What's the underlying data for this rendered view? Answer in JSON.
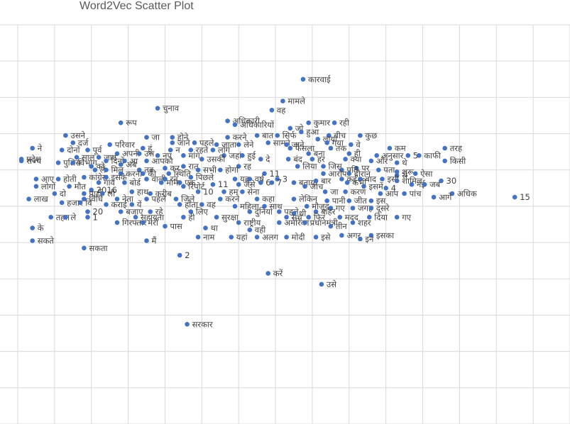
{
  "chart_data": {
    "type": "scatter",
    "title": "Word2Vec Scatter Plot",
    "xlabel": "",
    "ylabel": "",
    "grid": true,
    "xlim": [
      -7,
      8
    ],
    "ylim": [
      -7,
      4
    ],
    "points": [
      {
        "x": 0.75,
        "y": 2.5,
        "label": "कारवाई"
      },
      {
        "x": 0.2,
        "y": 1.9,
        "label": "मामले"
      },
      {
        "x": -0.1,
        "y": 1.65,
        "label": "वह"
      },
      {
        "x": -3.2,
        "y": 1.7,
        "label": "चुनाव"
      },
      {
        "x": -1.3,
        "y": 1.35,
        "label": "अधिकारी"
      },
      {
        "x": -1.1,
        "y": 1.25,
        "label": "अधिकारियों"
      },
      {
        "x": -4.2,
        "y": 1.3,
        "label": "रूप"
      },
      {
        "x": 0.9,
        "y": 1.3,
        "label": "कुमार"
      },
      {
        "x": 1.6,
        "y": 1.3,
        "label": "रही"
      },
      {
        "x": 0.4,
        "y": 1.15,
        "label": "जो"
      },
      {
        "x": 0.7,
        "y": 1.05,
        "label": "हुआ"
      },
      {
        "x": 2.3,
        "y": 0.95,
        "label": "कुछ"
      },
      {
        "x": 1.45,
        "y": 0.95,
        "label": "बीच"
      },
      {
        "x": -5.7,
        "y": 0.95,
        "label": "उसने"
      },
      {
        "x": -3.5,
        "y": 0.9,
        "label": "जा"
      },
      {
        "x": -2.8,
        "y": 0.9,
        "label": "होने"
      },
      {
        "x": -1.3,
        "y": 0.9,
        "label": "करने"
      },
      {
        "x": -0.5,
        "y": 0.95,
        "label": "बात"
      },
      {
        "x": 0.05,
        "y": 0.95,
        "label": "सिर्फ"
      },
      {
        "x": 1.15,
        "y": 0.85,
        "label": "लाया"
      },
      {
        "x": -5.5,
        "y": 0.75,
        "label": "दर्ज"
      },
      {
        "x": -4.5,
        "y": 0.7,
        "label": "परिवार"
      },
      {
        "x": -2.8,
        "y": 0.75,
        "label": "जाने"
      },
      {
        "x": -2.2,
        "y": 0.75,
        "label": "पहले"
      },
      {
        "x": -1.6,
        "y": 0.7,
        "label": "जाता"
      },
      {
        "x": -1.0,
        "y": 0.7,
        "label": "लेने"
      },
      {
        "x": -0.2,
        "y": 0.75,
        "label": "सामने"
      },
      {
        "x": 0.3,
        "y": 0.7,
        "label": "जाने"
      },
      {
        "x": 1.4,
        "y": 0.75,
        "label": "गया"
      },
      {
        "x": 2.05,
        "y": 0.7,
        "label": "वे"
      },
      {
        "x": -6.6,
        "y": 0.6,
        "label": "ने"
      },
      {
        "x": -5.8,
        "y": 0.55,
        "label": "दोनों"
      },
      {
        "x": -5.1,
        "y": 0.55,
        "label": "पूर्व"
      },
      {
        "x": -3.6,
        "y": 0.6,
        "label": "हूं"
      },
      {
        "x": -2.85,
        "y": 0.55,
        "label": "न"
      },
      {
        "x": -2.3,
        "y": 0.55,
        "label": "रहते"
      },
      {
        "x": -1.7,
        "y": 0.55,
        "label": "लोग"
      },
      {
        "x": 0.4,
        "y": 0.6,
        "label": "फैसला"
      },
      {
        "x": 1.5,
        "y": 0.6,
        "label": "तक"
      },
      {
        "x": 3.1,
        "y": 0.6,
        "label": "कम"
      },
      {
        "x": 4.6,
        "y": 0.6,
        "label": "तरह"
      },
      {
        "x": -4.3,
        "y": 0.45,
        "label": "अपनी"
      },
      {
        "x": -3.7,
        "y": 0.45,
        "label": "उस"
      },
      {
        "x": -3.2,
        "y": 0.4,
        "label": "नए"
      },
      {
        "x": -2.5,
        "y": 0.4,
        "label": "मांग"
      },
      {
        "x": -1.4,
        "y": 0.4,
        "label": "जहां"
      },
      {
        "x": -0.9,
        "y": 0.4,
        "label": "हुई"
      },
      {
        "x": 0.9,
        "y": 0.45,
        "label": "बना"
      },
      {
        "x": 2.0,
        "y": 0.45,
        "label": "ही"
      },
      {
        "x": 2.75,
        "y": 0.4,
        "label": "अनुसार"
      },
      {
        "x": 3.6,
        "y": 0.4,
        "label": "5"
      },
      {
        "x": 3.9,
        "y": 0.4,
        "label": "काफी"
      },
      {
        "x": -5.4,
        "y": 0.35,
        "label": "साल"
      },
      {
        "x": -4.8,
        "y": 0.35,
        "label": "जाए"
      },
      {
        "x": -6.9,
        "y": 0.3,
        "label": "प्रदेश"
      },
      {
        "x": -2.0,
        "y": 0.3,
        "label": "उसकी"
      },
      {
        "x": -0.4,
        "y": 0.3,
        "label": "दे"
      },
      {
        "x": 0.35,
        "y": 0.3,
        "label": "बंद"
      },
      {
        "x": 1.0,
        "y": 0.3,
        "label": "हर"
      },
      {
        "x": 1.9,
        "y": 0.3,
        "label": "क्या"
      },
      {
        "x": 2.6,
        "y": 0.25,
        "label": "और"
      },
      {
        "x": 3.3,
        "y": 0.2,
        "label": "थे"
      },
      {
        "x": 4.6,
        "y": 0.25,
        "label": "किसी"
      },
      {
        "x": -6.9,
        "y": 0.25,
        "label": "राज्य"
      },
      {
        "x": -5.9,
        "y": 0.2,
        "label": "पुलिस"
      },
      {
        "x": -5.5,
        "y": 0.2,
        "label": "विभाग"
      },
      {
        "x": -4.6,
        "y": 0.25,
        "label": "दिनों"
      },
      {
        "x": -4.1,
        "y": 0.25,
        "label": "आ"
      },
      {
        "x": -3.5,
        "y": 0.25,
        "label": "आपको"
      },
      {
        "x": -5.0,
        "y": 0.1,
        "label": "को"
      },
      {
        "x": -4.2,
        "y": 0.15,
        "label": "अब"
      },
      {
        "x": -2.5,
        "y": 0.1,
        "label": "रात"
      },
      {
        "x": -1.0,
        "y": 0.1,
        "label": "रह"
      },
      {
        "x": 0.6,
        "y": 0.1,
        "label": "लिया"
      },
      {
        "x": 1.3,
        "y": 0.1,
        "label": "जिस"
      },
      {
        "x": 2.2,
        "y": 0.05,
        "label": "पर"
      },
      {
        "x": -4.9,
        "y": 0.0,
        "label": "लें"
      },
      {
        "x": -4.6,
        "y": 0.0,
        "label": "मिल"
      },
      {
        "x": -3.7,
        "y": 0.0,
        "label": "तब"
      },
      {
        "x": -3.0,
        "y": 0.05,
        "label": "कर"
      },
      {
        "x": -2.1,
        "y": 0.0,
        "label": "सभी"
      },
      {
        "x": -1.5,
        "y": 0.0,
        "label": "होगा"
      },
      {
        "x": 1.8,
        "y": 0.0,
        "label": "प्रति"
      },
      {
        "x": 2.8,
        "y": 0.0,
        "label": "पता"
      },
      {
        "x": 3.3,
        "y": -0.05,
        "label": "शुरू"
      },
      {
        "x": 3.8,
        "y": -0.1,
        "label": "ऐसा"
      },
      {
        "x": -4.2,
        "y": -0.1,
        "label": "करना"
      },
      {
        "x": -3.6,
        "y": -0.1,
        "label": "की"
      },
      {
        "x": -2.9,
        "y": -0.1,
        "label": "स्थिति"
      },
      {
        "x": -0.3,
        "y": -0.1,
        "label": "11"
      },
      {
        "x": 1.3,
        "y": -0.1,
        "label": "आरोप"
      },
      {
        "x": 2.0,
        "y": -0.1,
        "label": "दौरान"
      },
      {
        "x": 3.3,
        "y": -0.15,
        "label": "से"
      },
      {
        "x": -5.2,
        "y": -0.2,
        "label": "कांग्रेस"
      },
      {
        "x": -4.6,
        "y": -0.2,
        "label": "इसके"
      },
      {
        "x": -2.3,
        "y": -0.2,
        "label": "पिछले"
      },
      {
        "x": -1.1,
        "y": -0.25,
        "label": "यह"
      },
      {
        "x": -0.7,
        "y": -0.25,
        "label": "वर्ष"
      },
      {
        "x": 0.05,
        "y": -0.25,
        "label": "3"
      },
      {
        "x": 1.8,
        "y": -0.25,
        "label": "कई"
      },
      {
        "x": 2.3,
        "y": -0.25,
        "label": "बाद"
      },
      {
        "x": 2.9,
        "y": -0.25,
        "label": "इसी"
      },
      {
        "x": -6.5,
        "y": -0.25,
        "label": "आए"
      },
      {
        "x": -5.9,
        "y": -0.25,
        "label": "होती"
      },
      {
        "x": -3.5,
        "y": -0.25,
        "label": "वाली"
      },
      {
        "x": -3.0,
        "y": -0.25,
        "label": "रन"
      },
      {
        "x": 3.3,
        "y": -0.3,
        "label": "शामिल"
      },
      {
        "x": 4.5,
        "y": -0.3,
        "label": "30"
      },
      {
        "x": -4.8,
        "y": -0.35,
        "label": "गांव"
      },
      {
        "x": -4.1,
        "y": -0.35,
        "label": "बोर्ड"
      },
      {
        "x": -3.1,
        "y": -0.35,
        "label": "मामा"
      },
      {
        "x": -2.6,
        "y": -0.35,
        "label": "एक"
      },
      {
        "x": -1.7,
        "y": -0.4,
        "label": "11"
      },
      {
        "x": -1.0,
        "y": -0.4,
        "label": "जैसे"
      },
      {
        "x": -0.4,
        "y": -0.35,
        "label": "6"
      },
      {
        "x": -0.1,
        "y": -0.35,
        "label": "7"
      },
      {
        "x": 0.5,
        "y": -0.35,
        "label": "बताया"
      },
      {
        "x": 1.1,
        "y": -0.3,
        "label": "बार"
      },
      {
        "x": 1.95,
        "y": -0.35,
        "label": "कभी"
      },
      {
        "x": 3.7,
        "y": -0.4,
        "label": "नई"
      },
      {
        "x": 4.05,
        "y": -0.4,
        "label": "जब"
      },
      {
        "x": -6.5,
        "y": -0.45,
        "label": "लोगों"
      },
      {
        "x": -5.6,
        "y": -0.45,
        "label": "मौत"
      },
      {
        "x": -2.5,
        "y": -0.45,
        "label": "रिपोर्ट"
      },
      {
        "x": 0.8,
        "y": -0.45,
        "label": "जांच"
      },
      {
        "x": 2.4,
        "y": -0.45,
        "label": "इसमें"
      },
      {
        "x": 3.0,
        "y": -0.5,
        "label": "4"
      },
      {
        "x": -5.0,
        "y": -0.55,
        "label": "2016"
      },
      {
        "x": -3.9,
        "y": -0.6,
        "label": "हाथ"
      },
      {
        "x": -1.4,
        "y": -0.6,
        "label": "हम"
      },
      {
        "x": -0.9,
        "y": -0.6,
        "label": "सेना"
      },
      {
        "x": 1.35,
        "y": -0.6,
        "label": "जा"
      },
      {
        "x": 1.9,
        "y": -0.6,
        "label": "करण"
      },
      {
        "x": -6.0,
        "y": -0.65,
        "label": "दो"
      },
      {
        "x": -5.2,
        "y": -0.65,
        "label": "पार्टी"
      },
      {
        "x": -4.7,
        "y": -0.65,
        "label": "ली"
      },
      {
        "x": -3.4,
        "y": -0.65,
        "label": "करीब"
      },
      {
        "x": -2.1,
        "y": -0.6,
        "label": "10"
      },
      {
        "x": 2.85,
        "y": -0.65,
        "label": "आप"
      },
      {
        "x": 3.5,
        "y": -0.65,
        "label": "पांच"
      },
      {
        "x": 4.8,
        "y": -0.65,
        "label": "अधिक"
      },
      {
        "x": 6.5,
        "y": -0.75,
        "label": "15"
      },
      {
        "x": 4.3,
        "y": -0.75,
        "label": "आगे"
      },
      {
        "x": -6.7,
        "y": -0.8,
        "label": "लाख"
      },
      {
        "x": -5.2,
        "y": -0.8,
        "label": "विधि"
      },
      {
        "x": -4.3,
        "y": -0.8,
        "label": "नेता"
      },
      {
        "x": -3.5,
        "y": -0.8,
        "label": "पहले"
      },
      {
        "x": -2.7,
        "y": -0.8,
        "label": "जिले"
      },
      {
        "x": -1.5,
        "y": -0.8,
        "label": "करने"
      },
      {
        "x": -0.5,
        "y": -0.8,
        "label": "कहा"
      },
      {
        "x": 0.5,
        "y": -0.8,
        "label": "लेकिन"
      },
      {
        "x": 1.4,
        "y": -0.85,
        "label": "पानी"
      },
      {
        "x": 2.0,
        "y": -0.85,
        "label": "जीत"
      },
      {
        "x": 2.6,
        "y": -0.85,
        "label": "इस"
      },
      {
        "x": -5.8,
        "y": -0.9,
        "label": "हजार"
      },
      {
        "x": -5.3,
        "y": -0.9,
        "label": "वि"
      },
      {
        "x": -4.6,
        "y": -0.95,
        "label": "कराई"
      },
      {
        "x": -3.9,
        "y": -0.95,
        "label": "यें"
      },
      {
        "x": -2.6,
        "y": -0.95,
        "label": "होता"
      },
      {
        "x": -2.0,
        "y": -0.95,
        "label": "वह"
      },
      {
        "x": -1.1,
        "y": -1.0,
        "label": "महिला"
      },
      {
        "x": -0.3,
        "y": -1.0,
        "label": "साथ"
      },
      {
        "x": 0.85,
        "y": -1.0,
        "label": "मौजूद"
      },
      {
        "x": 1.5,
        "y": -1.05,
        "label": "गए"
      },
      {
        "x": 2.1,
        "y": -1.05,
        "label": "जगह"
      },
      {
        "x": 2.6,
        "y": -1.05,
        "label": "दूसरे"
      },
      {
        "x": -5.1,
        "y": -1.15,
        "label": "20"
      },
      {
        "x": -4.2,
        "y": -1.15,
        "label": "बजाए"
      },
      {
        "x": -3.4,
        "y": -1.15,
        "label": "रहे"
      },
      {
        "x": -2.3,
        "y": -1.15,
        "label": "लिए"
      },
      {
        "x": -0.7,
        "y": -1.15,
        "label": "दुनिया"
      },
      {
        "x": 0.1,
        "y": -1.15,
        "label": "पहले"
      },
      {
        "x": 1.1,
        "y": -1.15,
        "label": "बाहर"
      },
      {
        "x": 0.5,
        "y": -1.2,
        "label": "थी"
      },
      {
        "x": -6.1,
        "y": -1.3,
        "label": "तहत"
      },
      {
        "x": -5.7,
        "y": -1.3,
        "label": "ले"
      },
      {
        "x": -5.1,
        "y": -1.3,
        "label": "1"
      },
      {
        "x": -3.8,
        "y": -1.3,
        "label": "सहायता"
      },
      {
        "x": -2.5,
        "y": -1.3,
        "label": "ही"
      },
      {
        "x": -1.6,
        "y": -1.3,
        "label": "सुरक्षा"
      },
      {
        "x": 0.3,
        "y": -1.3,
        "label": "सच"
      },
      {
        "x": 0.9,
        "y": -1.3,
        "label": "फिर"
      },
      {
        "x": 1.75,
        "y": -1.3,
        "label": "मदद"
      },
      {
        "x": 2.55,
        "y": -1.3,
        "label": "दिया"
      },
      {
        "x": 3.3,
        "y": -1.3,
        "label": "गए"
      },
      {
        "x": -4.3,
        "y": -1.45,
        "label": "गिरफ्तार"
      },
      {
        "x": -3.6,
        "y": -1.45,
        "label": "मेरी"
      },
      {
        "x": -1.0,
        "y": -1.45,
        "label": "राष्ट्रीय"
      },
      {
        "x": 0.1,
        "y": -1.45,
        "label": "अमेरिका"
      },
      {
        "x": 0.8,
        "y": -1.45,
        "label": "प्रधानमंत्री"
      },
      {
        "x": 2.1,
        "y": -1.45,
        "label": "शहर"
      },
      {
        "x": -3.0,
        "y": -1.55,
        "label": "पास"
      },
      {
        "x": -1.9,
        "y": -1.6,
        "label": "था"
      },
      {
        "x": 1.5,
        "y": -1.55,
        "label": "तीन"
      },
      {
        "x": -6.6,
        "y": -1.6,
        "label": "के"
      },
      {
        "x": -0.7,
        "y": -1.65,
        "label": "वही"
      },
      {
        "x": 2.6,
        "y": -1.8,
        "label": "इसका"
      },
      {
        "x": -2.1,
        "y": -1.85,
        "label": "नाम"
      },
      {
        "x": -1.2,
        "y": -1.85,
        "label": "यहां"
      },
      {
        "x": -0.5,
        "y": -1.85,
        "label": "अलग"
      },
      {
        "x": 0.3,
        "y": -1.85,
        "label": "मोदी"
      },
      {
        "x": 1.1,
        "y": -1.85,
        "label": "इसे"
      },
      {
        "x": 1.8,
        "y": -1.8,
        "label": "अगर"
      },
      {
        "x": 2.3,
        "y": -1.9,
        "label": "इन"
      },
      {
        "x": -6.6,
        "y": -1.95,
        "label": "सकते"
      },
      {
        "x": -3.5,
        "y": -1.95,
        "label": "मैं"
      },
      {
        "x": -5.2,
        "y": -2.15,
        "label": "सकता"
      },
      {
        "x": -2.6,
        "y": -2.35,
        "label": "2"
      },
      {
        "x": -0.2,
        "y": -2.85,
        "label": "करें"
      },
      {
        "x": 1.25,
        "y": -3.15,
        "label": "उसे"
      },
      {
        "x": -2.4,
        "y": -4.25,
        "label": "सरकार"
      }
    ]
  }
}
